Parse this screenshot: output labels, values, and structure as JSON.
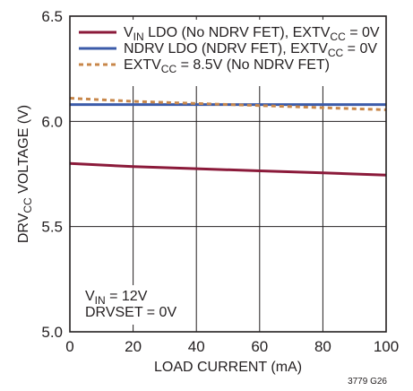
{
  "chart_data": {
    "type": "line",
    "xlabel": "LOAD CURRENT (mA)",
    "ylabel": {
      "prefix": "DRV",
      "sub": "CC",
      "suffix": " VOLTAGE (V)"
    },
    "xlim": [
      0,
      100
    ],
    "ylim": [
      5.0,
      6.5
    ],
    "x_ticks": [
      "0",
      "20",
      "40",
      "60",
      "80",
      "100"
    ],
    "x_tick_values": [
      0,
      20,
      40,
      60,
      80,
      100
    ],
    "y_ticks": [
      "5.0",
      "5.5",
      "6.0",
      "6.5"
    ],
    "y_tick_values": [
      5.0,
      5.5,
      6.0,
      6.5
    ],
    "grid": true,
    "legend_position": "top",
    "series": [
      {
        "name": "VIN LDO (No NDRV FET), EXTVCC = 0V",
        "label_parts": [
          [
            "V",
            "n"
          ],
          [
            "IN",
            "sub"
          ],
          [
            " LDO (No NDRV FET), EXTV",
            "n"
          ],
          [
            "CC",
            "sub"
          ],
          [
            " = 0V",
            "n"
          ]
        ],
        "color": "#8b1a3a",
        "dash": "solid",
        "x": [
          0,
          20,
          40,
          60,
          80,
          100
        ],
        "y": [
          5.8,
          5.785,
          5.775,
          5.765,
          5.755,
          5.745
        ]
      },
      {
        "name": "NDRV LDO (NDRV FET), EXTVCC = 0V",
        "label_parts": [
          [
            "NDRV LDO (NDRV FET), EXTV",
            "n"
          ],
          [
            "CC",
            "sub"
          ],
          [
            " = 0V",
            "n"
          ]
        ],
        "color": "#3b5ba9",
        "dash": "solid",
        "x": [
          0,
          20,
          40,
          60,
          80,
          100
        ],
        "y": [
          6.08,
          6.08,
          6.08,
          6.08,
          6.08,
          6.08
        ]
      },
      {
        "name": "EXTVCC = 8.5V (No NDRV FET)",
        "label_parts": [
          [
            "EXTV",
            "n"
          ],
          [
            "CC",
            "sub"
          ],
          [
            " = 8.5V (No NDRV FET)",
            "n"
          ]
        ],
        "color": "#c8874a",
        "dash": "dashed",
        "x": [
          0,
          20,
          40,
          60,
          80,
          100
        ],
        "y": [
          6.11,
          6.095,
          6.085,
          6.075,
          6.065,
          6.055
        ]
      }
    ],
    "annotations": [
      {
        "parts": [
          [
            "V",
            "n"
          ],
          [
            "IN",
            "sub"
          ],
          [
            " = 12V",
            "n"
          ]
        ]
      },
      {
        "parts": [
          [
            "DRVSET = 0V",
            "n"
          ]
        ]
      }
    ],
    "figure_code": "3779 G26"
  }
}
